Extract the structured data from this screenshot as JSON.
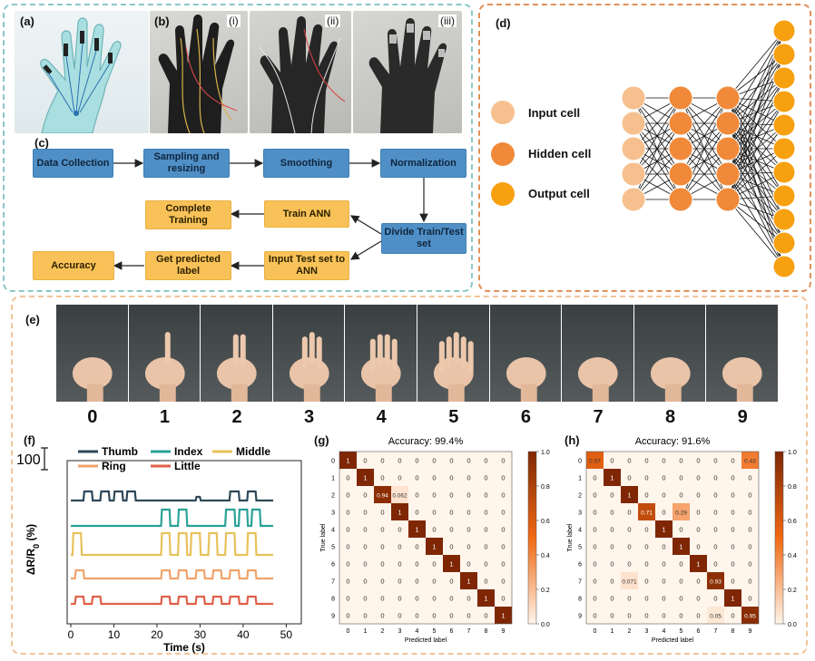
{
  "labels": {
    "a": "(a)",
    "b": "(b)",
    "c": "(c)",
    "d": "(d)",
    "e": "(e)",
    "f": "(f)",
    "g": "(g)",
    "h": "(h)"
  },
  "glove_sublabels": [
    "(i)",
    "(ii)",
    "(iii)"
  ],
  "flow": {
    "data_collection": "Data Collection",
    "sampling": "Sampling and resizing",
    "smoothing": "Smoothing",
    "normalization": "Normalization",
    "divide": "Divide Train/Test set",
    "train_ann": "Train ANN",
    "complete_training": "Complete Training",
    "input_test": "Input Test set to ANN",
    "get_predicted": "Get predicted label",
    "accuracy": "Accuracy"
  },
  "nn_legend": {
    "input": "Input cell",
    "hidden": "Hidden cell",
    "output": "Output cell"
  },
  "colors": {
    "input": "#f6c08e",
    "hidden": "#f08a3a",
    "output": "#f7a010",
    "teal_border": "#8ec6c6",
    "orange_border": "#e0915a",
    "peach_border": "#f3c49a"
  },
  "gestures": [
    "0",
    "1",
    "2",
    "3",
    "4",
    "5",
    "6",
    "7",
    "8",
    "9"
  ],
  "signal_chart": {
    "ylabel": "ΔR/R",
    "ylabel_sub": "0",
    "ylabel_unit": "(%)",
    "xlabel": "Time (s)",
    "scale_bar": "100",
    "x_ticks": [
      "0",
      "10",
      "20",
      "30",
      "40",
      "50"
    ],
    "legend": [
      {
        "name": "Thumb",
        "color": "#2f4858"
      },
      {
        "name": "Index",
        "color": "#2aa198"
      },
      {
        "name": "Middle",
        "color": "#e8c15a"
      },
      {
        "name": "Ring",
        "color": "#f0a36b"
      },
      {
        "name": "Little",
        "color": "#e0604a"
      }
    ]
  },
  "chart_data": [
    {
      "type": "heatmap",
      "title": "Accuracy: 99.4%",
      "xlabel": "Predicted label",
      "ylabel": "True label",
      "categories": [
        "0",
        "1",
        "2",
        "3",
        "4",
        "5",
        "6",
        "7",
        "8",
        "9"
      ],
      "colorbar_ticks": [
        "0.0",
        "0.2",
        "0.4",
        "0.6",
        "0.8",
        "1.0"
      ],
      "matrix": [
        [
          1,
          0,
          0,
          0,
          0,
          0,
          0,
          0,
          0,
          0
        ],
        [
          0,
          1,
          0,
          0,
          0,
          0,
          0,
          0,
          0,
          0
        ],
        [
          0,
          0,
          0.94,
          0.062,
          0,
          0,
          0,
          0,
          0,
          0
        ],
        [
          0,
          0,
          0,
          1,
          0,
          0,
          0,
          0,
          0,
          0
        ],
        [
          0,
          0,
          0,
          0,
          1,
          0,
          0,
          0,
          0,
          0
        ],
        [
          0,
          0,
          0,
          0,
          0,
          1,
          0,
          0,
          0,
          0
        ],
        [
          0,
          0,
          0,
          0,
          0,
          0,
          1,
          0,
          0,
          0
        ],
        [
          0,
          0,
          0,
          0,
          0,
          0,
          0,
          1,
          0,
          0
        ],
        [
          0,
          0,
          0,
          0,
          0,
          0,
          0,
          0,
          1,
          0
        ],
        [
          0,
          0,
          0,
          0,
          0,
          0,
          0,
          0,
          0,
          1
        ]
      ]
    },
    {
      "type": "heatmap",
      "title": "Accuracy: 91.6%",
      "xlabel": "Predicted label",
      "ylabel": "True label",
      "categories": [
        "0",
        "1",
        "2",
        "3",
        "4",
        "5",
        "6",
        "7",
        "8",
        "9"
      ],
      "colorbar_ticks": [
        "0.0",
        "0.2",
        "0.4",
        "0.6",
        "0.8",
        "1.0"
      ],
      "matrix": [
        [
          0.57,
          0,
          0,
          0,
          0,
          0,
          0,
          0,
          0,
          0.43
        ],
        [
          0,
          1,
          0,
          0,
          0,
          0,
          0,
          0,
          0,
          0
        ],
        [
          0,
          0,
          1,
          0,
          0,
          0,
          0,
          0,
          0,
          0
        ],
        [
          0,
          0,
          0,
          0.71,
          0,
          0.29,
          0,
          0,
          0,
          0
        ],
        [
          0,
          0,
          0,
          0,
          1,
          0,
          0,
          0,
          0,
          0
        ],
        [
          0,
          0,
          0,
          0,
          0,
          1,
          0,
          0,
          0,
          0
        ],
        [
          0,
          0,
          0,
          0,
          0,
          0,
          1,
          0,
          0,
          0
        ],
        [
          0,
          0,
          0.071,
          0,
          0,
          0,
          0,
          0.93,
          0,
          0
        ],
        [
          0,
          0,
          0,
          0,
          0,
          0,
          0,
          0,
          1,
          0
        ],
        [
          0,
          0,
          0,
          0,
          0,
          0,
          0,
          0.05,
          0,
          0.95
        ]
      ]
    }
  ]
}
